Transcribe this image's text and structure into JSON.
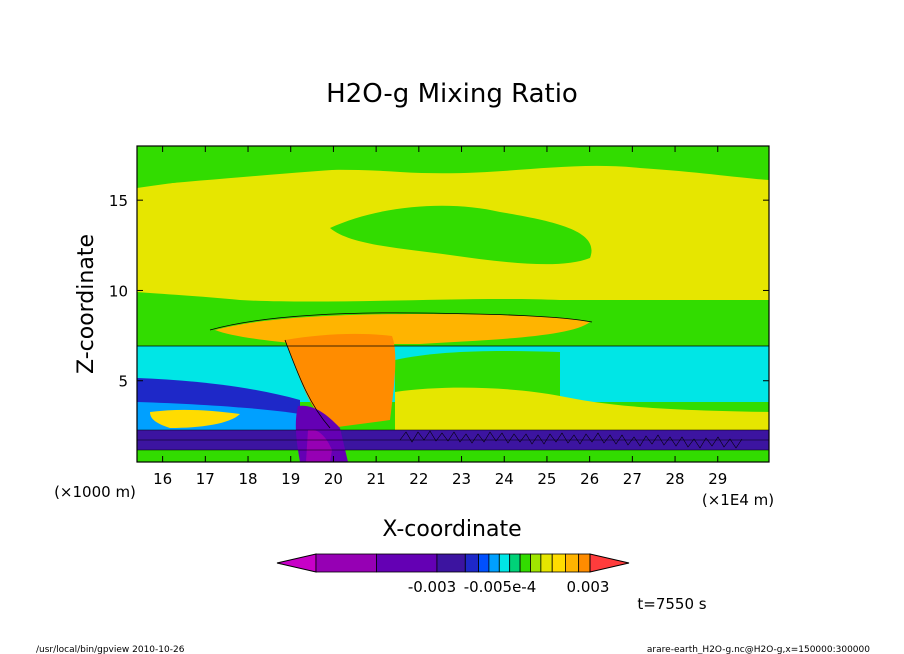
{
  "chart_data": {
    "type": "heatmap",
    "title": "H2O-g Mixing Ratio",
    "xlabel": "X-coordinate",
    "ylabel": "Z-coordinate",
    "x_unit_left": "(×1000 m)",
    "x_unit_right": "(×1E4 m)",
    "xlim": [
      15.4,
      30.2
    ],
    "ylim": [
      0.5,
      18
    ],
    "x_ticks": [
      16,
      17,
      18,
      19,
      20,
      21,
      22,
      23,
      24,
      25,
      26,
      27,
      28,
      29
    ],
    "y_ticks": [
      5,
      10,
      15
    ],
    "colorbar": {
      "colors": [
        "#c800c8",
        "#9600b4",
        "#6400b4",
        "#3c14a0",
        "#1e28c8",
        "#0050ff",
        "#00a0ff",
        "#00e6e6",
        "#00d278",
        "#32dc00",
        "#a0e600",
        "#e6e600",
        "#ffdc00",
        "#ffb400",
        "#ff8c00",
        "#ff3c3c"
      ],
      "tick_labels": [
        "-0.003",
        "-0.005e-4",
        "0.003"
      ]
    },
    "annotation_time": "t=7550 s",
    "footer_left": "/usr/local/bin/gpview  2010-10-26",
    "footer_right": "arare-earth_H2O-g.nc@H2O-g,x=150000:300000"
  }
}
